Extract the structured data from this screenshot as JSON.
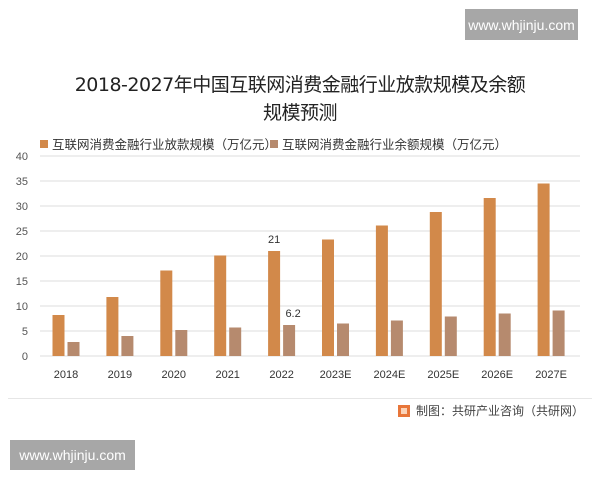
{
  "watermarks": {
    "top_right": "www.whjinju.com",
    "bottom_left": "www.whjinju.com"
  },
  "header": {
    "title_line1": "2018-2027年中国互联网消费金融行业放款规模及余额",
    "title_line2": "规模预测"
  },
  "legend": [
    {
      "label": "互联网消费金融行业放款规模（万亿元）",
      "color": "#D2894A"
    },
    {
      "label": "互联网消费金融行业余额规模（万亿元）",
      "color": "#B68A6E"
    }
  ],
  "footer": {
    "source": "制图：共研产业咨询（共研网）"
  },
  "chart_data": {
    "type": "bar",
    "title": "2018-2027年中国互联网消费金融行业放款规模及余额规模预测",
    "xlabel": "",
    "ylabel": "",
    "ylim": [
      0,
      40
    ],
    "yticks": [
      0,
      5,
      10,
      15,
      20,
      25,
      30,
      35,
      40
    ],
    "grid": true,
    "legend_position": "top",
    "categories": [
      "2018",
      "2019",
      "2020",
      "2021",
      "2022",
      "2023E",
      "2024E",
      "2025E",
      "2026E",
      "2027E"
    ],
    "series": [
      {
        "name": "互联网消费金融行业放款规模（万亿元）",
        "color": "#D2894A",
        "values": [
          8.2,
          11.8,
          17.1,
          20.1,
          21,
          23.3,
          26.1,
          28.8,
          31.6,
          34.5
        ]
      },
      {
        "name": "互联网消费金融行业余额规模（万亿元）",
        "color": "#B68A6E",
        "values": [
          2.8,
          4.0,
          5.2,
          5.7,
          6.2,
          6.5,
          7.1,
          7.9,
          8.5,
          9.1
        ]
      }
    ],
    "annotations": [
      {
        "category": "2022",
        "series": 0,
        "text": "21"
      },
      {
        "category": "2022",
        "series": 1,
        "text": "6.2"
      }
    ]
  }
}
